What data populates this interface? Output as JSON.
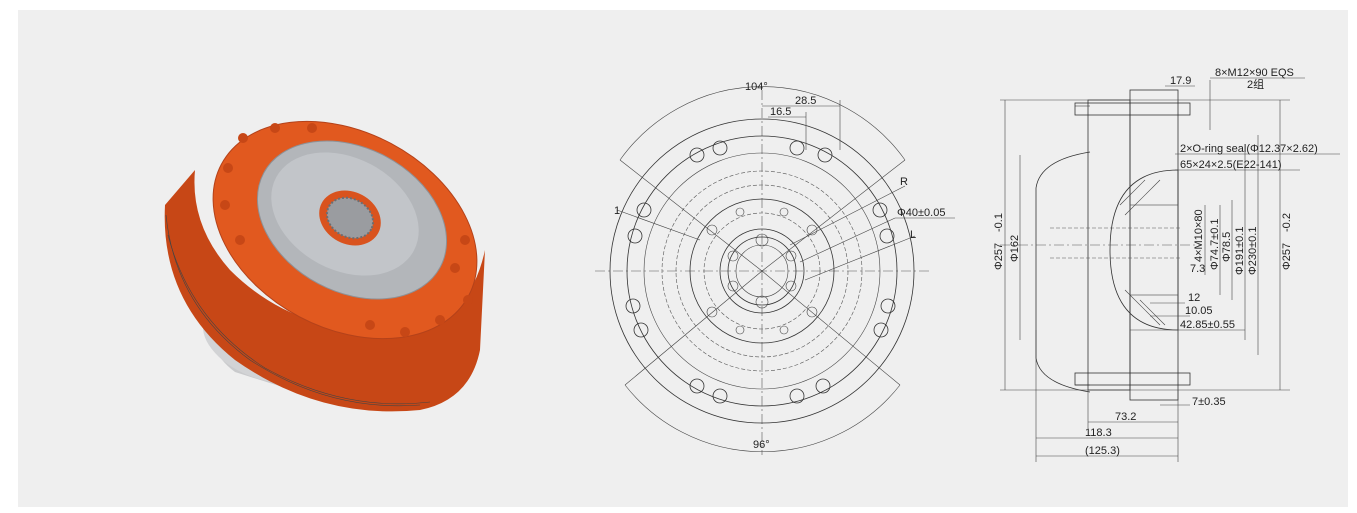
{
  "colors": {
    "housing_orange": "#d9531e",
    "housing_dark": "#a8391a",
    "face_metal": "#b9bcc0",
    "line": "#333333"
  },
  "front_view": {
    "angle_top": "104°",
    "angle_bottom": "96°",
    "dim_28_5": "28.5",
    "dim_16_5": "16.5",
    "label_R": "R",
    "label_1": "1",
    "label_L": "L",
    "phi40": "Φ40±0.05"
  },
  "side_view": {
    "bolts": "8×M12×90 EQS",
    "group": "2组",
    "dim_17_9": "17.9",
    "oring": "2×O-ring seal(Φ12.37×2.62)",
    "seal": "65×24×2.5(E22-141)",
    "phi257_left": "Φ257",
    "phi257_left_tol": "-0.1",
    "phi162": "Φ162",
    "thread_4xm10": "4×M10×80",
    "phi74_7": "Φ74.7±0.1",
    "phi78_5": "Φ78.5",
    "phi191": "Φ191±0.1",
    "phi230": "Φ230±0.1",
    "phi257_right": "Φ257",
    "phi257_right_tol": "-0.2",
    "dim_7_3": "7.3",
    "dim_12": "12",
    "dim_10_05": "10.05",
    "dim_42_85": "42.85±0.55",
    "dim_7_035": "7±0.35",
    "dim_73_2": "73.2",
    "dim_118_3": "118.3",
    "dim_125_3": "(125.3)"
  }
}
